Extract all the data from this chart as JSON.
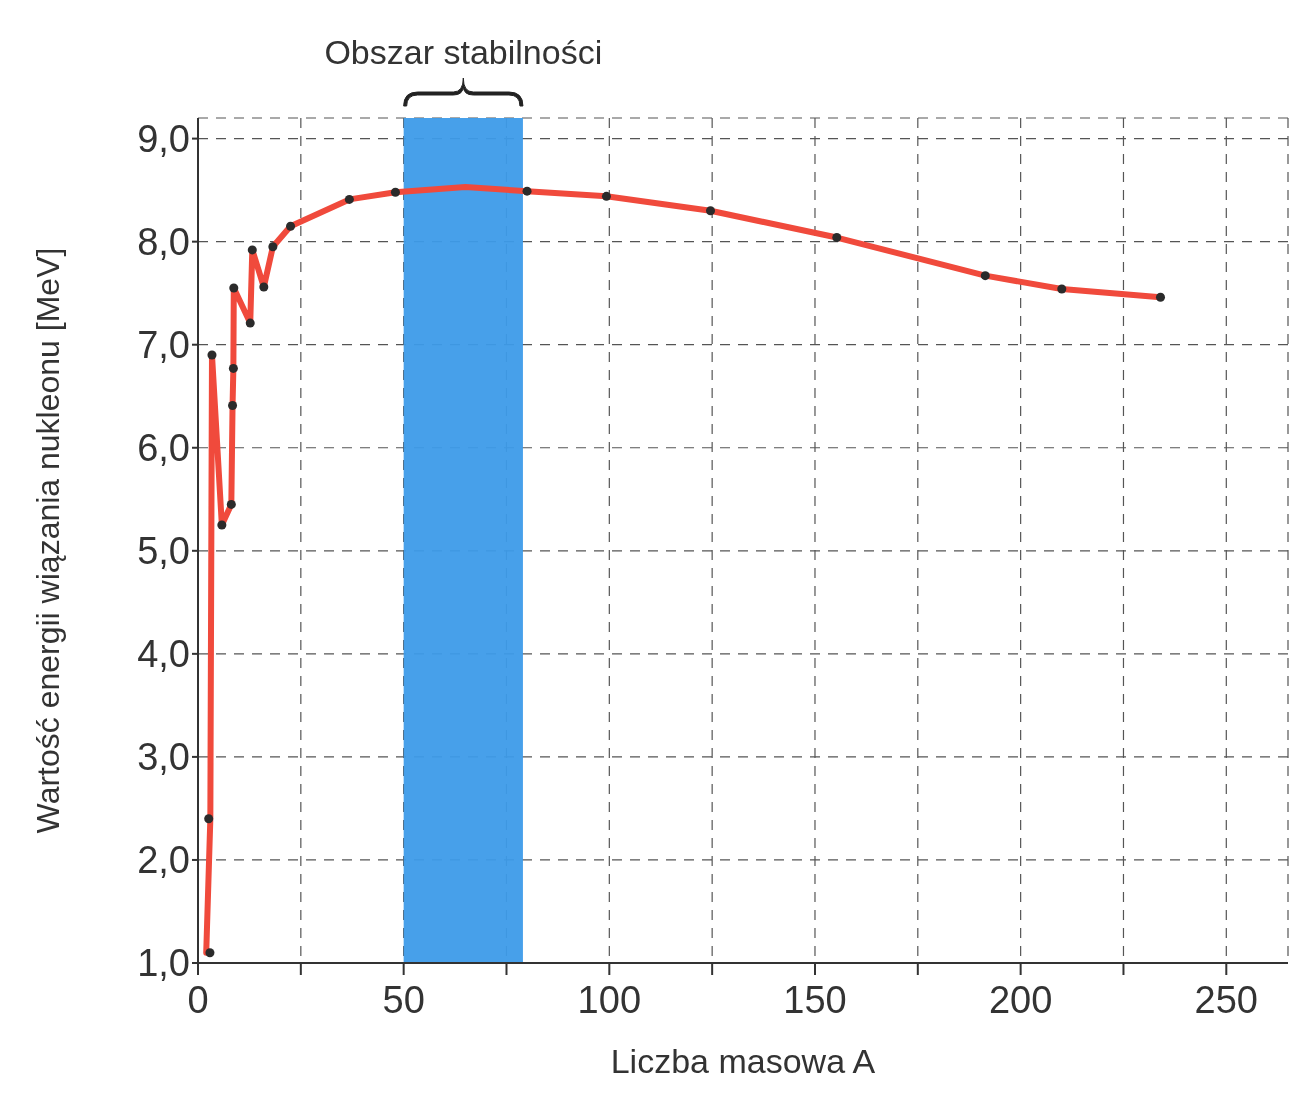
{
  "chart_data": {
    "type": "line",
    "xlabel": "Liczba masowa A",
    "ylabel": "Wartość energii wiązania nukleonu [MeV]",
    "xlim": [
      0,
      265
    ],
    "ylim": [
      1,
      9.2
    ],
    "xticks": [
      0,
      {
        "value": 25,
        "label": null
      },
      50,
      {
        "value": 75,
        "label": null
      },
      100,
      {
        "value": 125,
        "label": null
      },
      150,
      {
        "value": 175,
        "label": null
      },
      200,
      {
        "value": 225,
        "label": null
      },
      250
    ],
    "yticks": [
      {
        "value": 1,
        "label": "1,0"
      },
      {
        "value": 2,
        "label": "2,0"
      },
      {
        "value": 3,
        "label": "3,0"
      },
      {
        "value": 4,
        "label": "4,0"
      },
      {
        "value": 5,
        "label": "5,0"
      },
      {
        "value": 6,
        "label": "6,0"
      },
      {
        "value": 7,
        "label": "7,0"
      },
      {
        "value": 8,
        "label": "8,0"
      },
      {
        "value": 9,
        "label": "9,0"
      }
    ],
    "grid": true,
    "legend": false,
    "line_style": "solid",
    "bands": [
      {
        "axis": "x",
        "from": 50,
        "to": 79,
        "label": "Obszar stabilności",
        "color": "#3d9be9"
      }
    ],
    "series": [
      {
        "type": "line",
        "color": "#f04a3c",
        "marker": "none",
        "x": [
          2,
          3,
          3.4,
          5.8,
          8.1,
          8.4,
          8.6,
          8.7,
          12.7,
          13.2,
          16,
          18.2,
          22.5,
          36.8,
          48,
          65,
          80,
          99.3,
          124.6,
          155.3,
          191.4,
          210,
          234
        ],
        "values": [
          1.1,
          2.4,
          6.9,
          5.25,
          5.45,
          6.41,
          6.77,
          7.55,
          7.21,
          7.92,
          7.56,
          7.95,
          8.15,
          8.41,
          8.48,
          8.53,
          8.49,
          8.44,
          8.3,
          8.04,
          7.67,
          7.54,
          7.46
        ]
      },
      {
        "type": "scatter",
        "color": "#2b2b2b",
        "marker": "circle",
        "x": [
          2.9,
          2.6,
          3.4,
          5.8,
          8.1,
          8.4,
          8.6,
          8.7,
          12.7,
          13.2,
          16,
          18.2,
          22.5,
          36.8,
          48,
          80,
          99.3,
          124.6,
          155.3,
          191.4,
          210,
          234
        ],
        "values": [
          1.1,
          2.4,
          6.9,
          5.25,
          5.45,
          6.41,
          6.77,
          7.55,
          7.21,
          7.92,
          7.56,
          7.95,
          8.15,
          8.41,
          8.48,
          8.49,
          8.44,
          8.3,
          8.04,
          7.67,
          7.54,
          7.46
        ]
      }
    ]
  }
}
